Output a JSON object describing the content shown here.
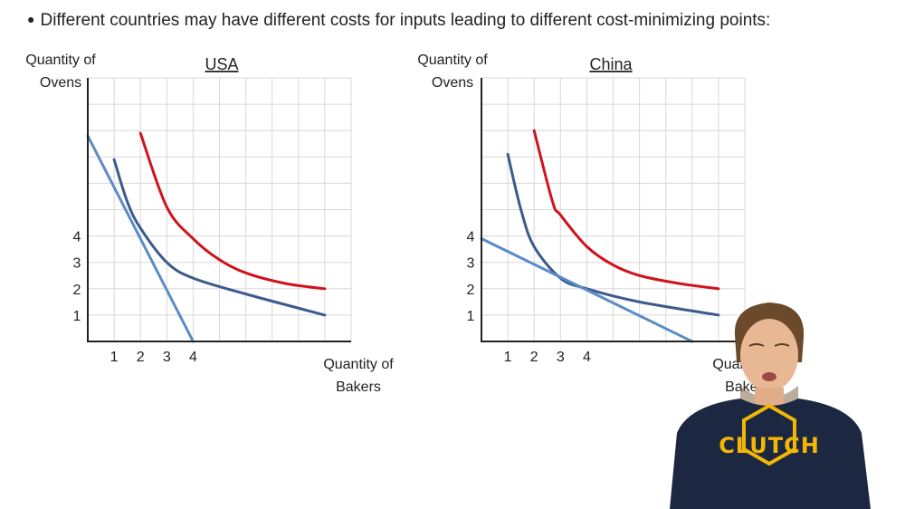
{
  "heading": {
    "bullet": "●",
    "text": "Different countries may have different costs for inputs leading to different cost-minimizing points:"
  },
  "chart_data": [
    {
      "type": "line",
      "title": "USA",
      "ylabel_line1": "Quantity of",
      "ylabel_line2": "Ovens",
      "xlabel_line1": "Quantity of",
      "xlabel_line2": "Bakers",
      "xlim": [
        0,
        10
      ],
      "ylim": [
        0,
        10
      ],
      "grid": true,
      "x_ticks": [
        1,
        2,
        3,
        4
      ],
      "y_ticks": [
        1,
        2,
        3,
        4
      ],
      "series": [
        {
          "role": "isoquant-low",
          "color": "#3d5a8c",
          "x": [
            1.0,
            1.5,
            2.0,
            3.0,
            4.0,
            6.0,
            9.0
          ],
          "y": [
            6.9,
            5.3,
            4.3,
            3.0,
            2.4,
            1.8,
            1.0
          ]
        },
        {
          "role": "isoquant-high",
          "color": "#d0121b",
          "x": [
            2.0,
            3.0,
            4.0,
            5.0,
            6.0,
            7.5,
            9.0
          ],
          "y": [
            7.9,
            5.1,
            3.9,
            3.1,
            2.6,
            2.2,
            2.0
          ]
        },
        {
          "role": "isocost",
          "color": "#5b8bc7",
          "x": [
            0.0,
            4.0
          ],
          "y": [
            7.8,
            0.0
          ]
        }
      ]
    },
    {
      "type": "line",
      "title": "China",
      "ylabel_line1": "Quantity of",
      "ylabel_line2": "Ovens",
      "xlabel_line1": "Quantity of",
      "xlabel_line2": "Bakers",
      "xlim": [
        0,
        10
      ],
      "ylim": [
        0,
        10
      ],
      "grid": true,
      "x_ticks": [
        1,
        2,
        3,
        4
      ],
      "y_ticks": [
        1,
        2,
        3,
        4
      ],
      "series": [
        {
          "role": "isoquant-low",
          "color": "#3d5a8c",
          "x": [
            1.0,
            1.5,
            2.0,
            3.0,
            4.0,
            6.0,
            9.0
          ],
          "y": [
            7.1,
            5.0,
            3.6,
            2.4,
            2.0,
            1.5,
            1.0
          ]
        },
        {
          "role": "isoquant-high",
          "color": "#d0121b",
          "x": [
            2.0,
            2.7,
            3.0,
            4.0,
            5.0,
            6.0,
            7.5,
            9.0
          ],
          "y": [
            8.0,
            5.3,
            4.8,
            3.6,
            2.9,
            2.5,
            2.2,
            2.0
          ]
        },
        {
          "role": "isocost",
          "color": "#5b8bc7",
          "x": [
            0.0,
            8.0
          ],
          "y": [
            3.9,
            0.0
          ]
        }
      ]
    }
  ],
  "presenter": {
    "shirt_text": "CLUTCH"
  }
}
